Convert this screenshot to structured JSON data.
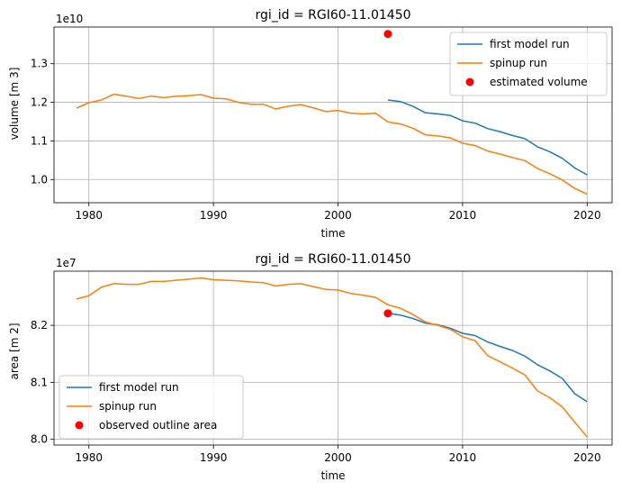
{
  "chart_data": [
    {
      "type": "line",
      "title": "rgi_id = RGI60-11.01450",
      "xlabel": "time",
      "ylabel": "volume [m 3]",
      "offset_label": "1e10",
      "xlim": [
        1977.2,
        2022.0
      ],
      "ylim": [
        0.94,
        1.395
      ],
      "xticks": [
        1980,
        1990,
        2000,
        2010,
        2020
      ],
      "yticks": [
        1.0,
        1.1,
        1.2,
        1.3
      ],
      "ytick_labels": [
        "1.0",
        "1.1",
        "1.2",
        "1.3"
      ],
      "grid": true,
      "legend_position": "upper right",
      "series": [
        {
          "name": "first model run",
          "kind": "line",
          "color": "#1f77b4",
          "x": [
            2004,
            2005,
            2006,
            2007,
            2008,
            2009,
            2010,
            2011,
            2012,
            2013,
            2014,
            2015,
            2016,
            2017,
            2018,
            2019,
            2020
          ],
          "y": [
            1.206,
            1.202,
            1.19,
            1.173,
            1.17,
            1.166,
            1.152,
            1.146,
            1.132,
            1.124,
            1.114,
            1.106,
            1.085,
            1.072,
            1.055,
            1.03,
            1.012
          ]
        },
        {
          "name": "spinup run",
          "kind": "line",
          "color": "#ff7f0e",
          "x": [
            1979,
            1980,
            1981,
            1982,
            1983,
            1984,
            1985,
            1986,
            1987,
            1988,
            1989,
            1990,
            1991,
            1992,
            1993,
            1994,
            1995,
            1996,
            1997,
            1998,
            1999,
            2000,
            2001,
            2002,
            2003,
            2004,
            2005,
            2006,
            2007,
            2008,
            2009,
            2010,
            2011,
            2012,
            2013,
            2014,
            2015,
            2016,
            2017,
            2018,
            2019,
            2020
          ],
          "y": [
            1.185,
            1.199,
            1.206,
            1.221,
            1.216,
            1.21,
            1.216,
            1.212,
            1.216,
            1.217,
            1.22,
            1.211,
            1.209,
            1.2,
            1.195,
            1.195,
            1.183,
            1.19,
            1.194,
            1.186,
            1.176,
            1.179,
            1.172,
            1.17,
            1.172,
            1.149,
            1.144,
            1.133,
            1.116,
            1.113,
            1.108,
            1.094,
            1.088,
            1.074,
            1.066,
            1.057,
            1.049,
            1.029,
            1.015,
            0.999,
            0.977,
            0.962
          ]
        },
        {
          "name": "estimated volume",
          "kind": "marker",
          "color": "#ff0000",
          "x": [
            2004
          ],
          "y": [
            1.377
          ]
        }
      ]
    },
    {
      "type": "line",
      "title": "rgi_id = RGI60-11.01450",
      "xlabel": "time",
      "ylabel": "area [m 2]",
      "offset_label": "1e7",
      "xlim": [
        1977.2,
        2022.0
      ],
      "ylim": [
        7.99,
        8.295
      ],
      "xticks": [
        1980,
        1990,
        2000,
        2010,
        2020
      ],
      "yticks": [
        8.0,
        8.1,
        8.2
      ],
      "ytick_labels": [
        "8.0",
        "8.1",
        "8.2"
      ],
      "grid": true,
      "legend_position": "lower left",
      "series": [
        {
          "name": "first model run",
          "kind": "line",
          "color": "#1f77b4",
          "x": [
            2004,
            2005,
            2006,
            2007,
            2008,
            2009,
            2010,
            2011,
            2012,
            2013,
            2014,
            2015,
            2016,
            2017,
            2018,
            2019,
            2020
          ],
          "y": [
            8.221,
            8.218,
            8.212,
            8.204,
            8.201,
            8.195,
            8.186,
            8.182,
            8.171,
            8.163,
            8.156,
            8.146,
            8.131,
            8.12,
            8.107,
            8.08,
            8.066
          ]
        },
        {
          "name": "spinup run",
          "kind": "line",
          "color": "#ff7f0e",
          "x": [
            1979,
            1980,
            1981,
            1982,
            1983,
            1984,
            1985,
            1986,
            1987,
            1988,
            1989,
            1990,
            1991,
            1992,
            1993,
            1994,
            1995,
            1996,
            1997,
            1998,
            1999,
            2000,
            2001,
            2002,
            2003,
            2004,
            2005,
            2006,
            2007,
            2008,
            2009,
            2010,
            2011,
            2012,
            2013,
            2014,
            2015,
            2016,
            2017,
            2018,
            2019,
            2020
          ],
          "y": [
            8.246,
            8.252,
            8.267,
            8.273,
            8.272,
            8.272,
            8.277,
            8.277,
            8.279,
            8.281,
            8.283,
            8.28,
            8.279,
            8.278,
            8.276,
            8.275,
            8.269,
            8.272,
            8.273,
            8.268,
            8.263,
            8.262,
            8.256,
            8.253,
            8.249,
            8.236,
            8.23,
            8.219,
            8.206,
            8.2,
            8.193,
            8.18,
            8.173,
            8.147,
            8.136,
            8.125,
            8.113,
            8.085,
            8.073,
            8.057,
            8.03,
            8.004
          ]
        },
        {
          "name": "observed outline area",
          "kind": "marker",
          "color": "#ff0000",
          "x": [
            2004
          ],
          "y": [
            8.221
          ]
        }
      ]
    }
  ]
}
